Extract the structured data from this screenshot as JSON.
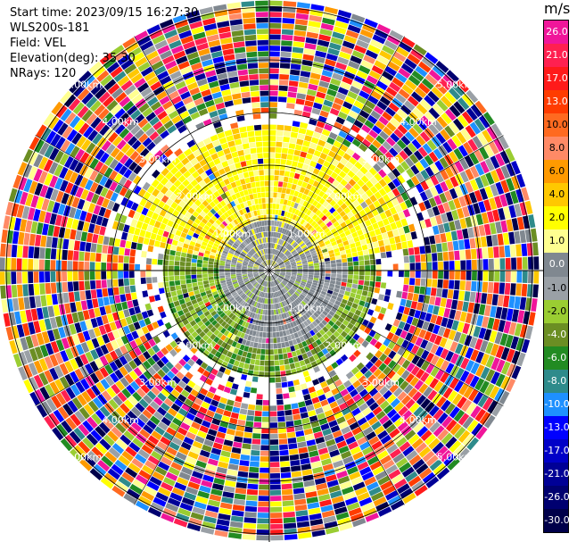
{
  "header": {
    "start_time": "Start time: 2023/09/15 16:27:30",
    "instrument": "WLS200s-181",
    "field": "Field: VEL",
    "elevation": "Elevation(deg): 35.30",
    "nrays": "NRays: 120"
  },
  "colorbar": {
    "unit": "m/s",
    "levels": [
      {
        "label": "26.0",
        "color": "#f0169a"
      },
      {
        "label": "21.0",
        "color": "#ff2050"
      },
      {
        "label": "17.0",
        "color": "#ff1a1a"
      },
      {
        "label": "13.0",
        "color": "#ff3c00"
      },
      {
        "label": "10.0",
        "color": "#ff6a20"
      },
      {
        "label": "8.0",
        "color": "#ff8a66"
      },
      {
        "label": "6.0",
        "color": "#ff9a00"
      },
      {
        "label": "4.0",
        "color": "#ffc800"
      },
      {
        "label": "2.0",
        "color": "#ffff00"
      },
      {
        "label": "1.0",
        "color": "#ffff90"
      },
      {
        "label": "0.0",
        "color": "#808890"
      },
      {
        "label": "-1.0",
        "color": "#9aa0a6"
      },
      {
        "label": "-2.0",
        "color": "#9acd32"
      },
      {
        "label": "-4.0",
        "color": "#6b8e23"
      },
      {
        "label": "-6.0",
        "color": "#228b22"
      },
      {
        "label": "-8.0",
        "color": "#2e8b8b"
      },
      {
        "label": "-10.0",
        "color": "#1e90ff"
      },
      {
        "label": "-13.0",
        "color": "#0000ff"
      },
      {
        "label": "-17.0",
        "color": "#0000c8"
      },
      {
        "label": "-21.0",
        "color": "#000096"
      },
      {
        "label": "-26.0",
        "color": "#000070"
      },
      {
        "label": "-30.0",
        "color": "#00004a"
      }
    ]
  },
  "range_labels": {
    "r1": "1.00km",
    "r2": "2.00km",
    "r3": "3.00km",
    "r4": "4.00km",
    "r5": "5.00km"
  },
  "chart_data": {
    "type": "ppi",
    "field": "VEL",
    "unit": "m/s",
    "rings_km": [
      1,
      2,
      3,
      4,
      5
    ],
    "color_levels_ms": [
      26,
      21,
      17,
      13,
      10,
      8,
      6,
      4,
      2,
      1,
      0,
      -1,
      -2,
      -4,
      -6,
      -8,
      -10,
      -13,
      -17,
      -21,
      -26,
      -30
    ]
  }
}
